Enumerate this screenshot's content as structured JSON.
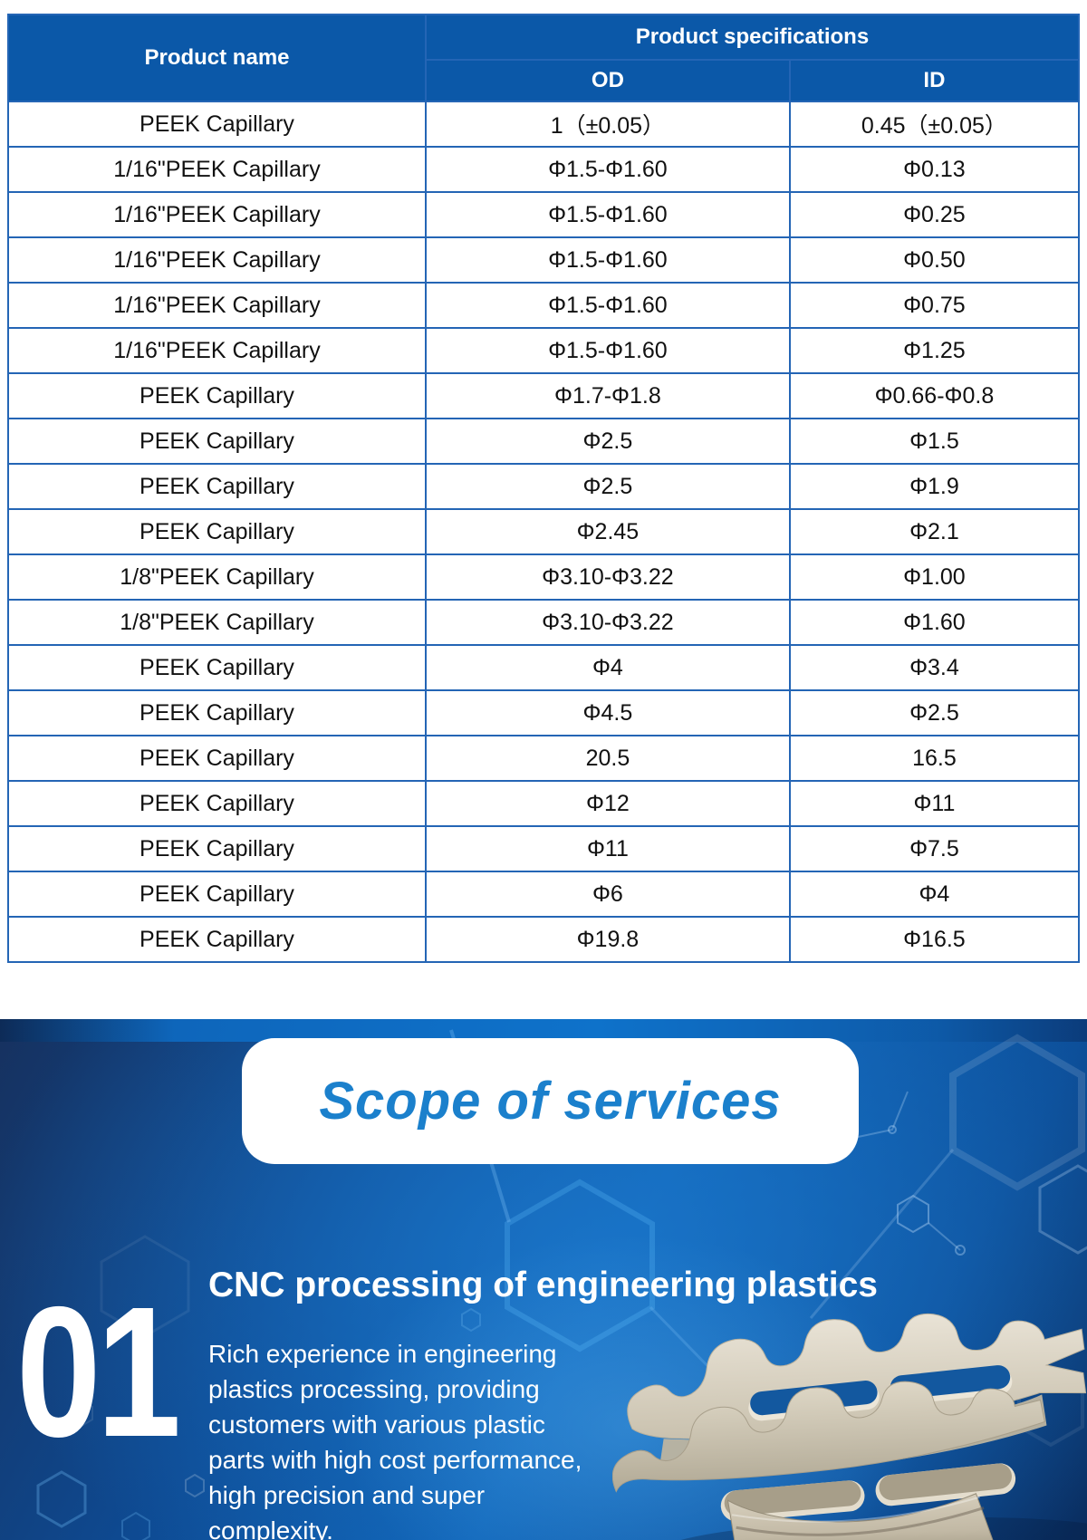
{
  "table": {
    "header": {
      "product_name": "Product name",
      "product_specifications": "Product specifications",
      "od": "OD",
      "id": "ID"
    },
    "rows": [
      {
        "name": "PEEK Capillary",
        "od": "1（±0.05）",
        "id": "0.45（±0.05）"
      },
      {
        "name": "1/16\"PEEK Capillary",
        "od": "Φ1.5-Φ1.60",
        "id": "Φ0.13"
      },
      {
        "name": "1/16\"PEEK Capillary",
        "od": "Φ1.5-Φ1.60",
        "id": "Φ0.25"
      },
      {
        "name": "1/16\"PEEK Capillary",
        "od": "Φ1.5-Φ1.60",
        "id": "Φ0.50"
      },
      {
        "name": "1/16\"PEEK Capillary",
        "od": "Φ1.5-Φ1.60",
        "id": "Φ0.75"
      },
      {
        "name": "1/16\"PEEK Capillary",
        "od": "Φ1.5-Φ1.60",
        "id": "Φ1.25"
      },
      {
        "name": "PEEK Capillary",
        "od": "Φ1.7-Φ1.8",
        "id": "Φ0.66-Φ0.8"
      },
      {
        "name": "PEEK Capillary",
        "od": "Φ2.5",
        "id": "Φ1.5"
      },
      {
        "name": "PEEK Capillary",
        "od": "Φ2.5",
        "id": "Φ1.9"
      },
      {
        "name": "PEEK Capillary",
        "od": "Φ2.45",
        "id": "Φ2.1"
      },
      {
        "name": "1/8\"PEEK Capillary",
        "od": "Φ3.10-Φ3.22",
        "id": "Φ1.00"
      },
      {
        "name": "1/8\"PEEK Capillary",
        "od": "Φ3.10-Φ3.22",
        "id": "Φ1.60"
      },
      {
        "name": "PEEK Capillary",
        "od": "Φ4",
        "id": "Φ3.4"
      },
      {
        "name": "PEEK Capillary",
        "od": "Φ4.5",
        "id": "Φ2.5"
      },
      {
        "name": "PEEK Capillary",
        "od": "20.5",
        "id": "16.5"
      },
      {
        "name": "PEEK Capillary",
        "od": "Φ12",
        "id": "Φ11"
      },
      {
        "name": "PEEK Capillary",
        "od": "Φ11",
        "id": "Φ7.5"
      },
      {
        "name": "PEEK Capillary",
        "od": "Φ6",
        "id": "Φ4"
      },
      {
        "name": "PEEK Capillary",
        "od": "Φ19.8",
        "id": "Φ16.5"
      }
    ],
    "colors": {
      "header_bg": "#0b58a8",
      "header_text": "#ffffff",
      "border": "#2465b5",
      "row_bg": "#ffffff",
      "cell_text": "#111111"
    }
  },
  "services": {
    "badge_title": "Scope of services",
    "item": {
      "number": "01",
      "title": "CNC processing of engineering plastics",
      "description": "Rich experience in engineering\nplastics processing, providing\ncustomers with various plastic\nparts with high cost performance,\nhigh precision and super\ncomplexity."
    },
    "colors": {
      "badge_bg": "#ffffff",
      "badge_text": "#1b80cc",
      "section_text": "#ffffff",
      "bg_dark_navy": "#16315f",
      "bg_bright_blue": "#0f63b6",
      "part_beige_light": "#e9e3d6",
      "part_beige_dark": "#9c947f"
    }
  }
}
